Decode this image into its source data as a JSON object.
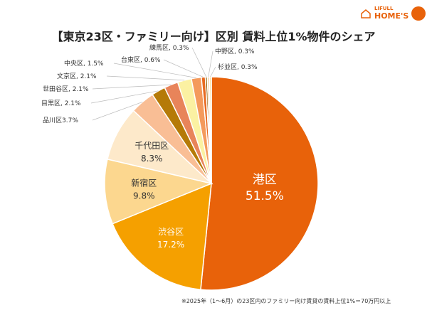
{
  "logo": {
    "line1": "LIFULL",
    "line2": "HOME'S"
  },
  "chart_data": {
    "type": "pie",
    "title": "【東京23区・ファミリー向け】区別 賃料上位1%物件のシェア",
    "footnote": "※2025年（1〜6月）の23区内のファミリー向け賃貸の賃料上位1%＝70万円以上",
    "slices": [
      {
        "label": "港区",
        "value": 51.5,
        "text": "51.5%",
        "color": "#E8620A"
      },
      {
        "label": "渋谷区",
        "value": 17.2,
        "text": "17.2%",
        "color": "#F5A000"
      },
      {
        "label": "新宿区",
        "value": 9.8,
        "text": "9.8%",
        "color": "#FCD78F"
      },
      {
        "label": "千代田区",
        "value": 8.3,
        "text": "8.3%",
        "color": "#FDE9CA"
      },
      {
        "label": "品川区",
        "value": 3.7,
        "text": "品川区3.7%",
        "color": "#F9BE95"
      },
      {
        "label": "目黒区",
        "value": 2.1,
        "text": "目黒区, 2.1%",
        "color": "#B57A08"
      },
      {
        "label": "世田谷区",
        "value": 2.1,
        "text": "世田谷区, 2.1%",
        "color": "#E8845A"
      },
      {
        "label": "文京区",
        "value": 2.1,
        "text": "文京区, 2.1%",
        "color": "#FBF1A2"
      },
      {
        "label": "中央区",
        "value": 1.5,
        "text": "中央区, 1.5%",
        "color": "#F49A5C"
      },
      {
        "label": "台東区",
        "value": 0.6,
        "text": "台東区, 0.6%",
        "color": "#E86A20"
      },
      {
        "label": "練馬区",
        "value": 0.3,
        "text": "練馬区, 0.3%",
        "color": "#8A5A00"
      },
      {
        "label": "中野区",
        "value": 0.3,
        "text": "中野区, 0.3%",
        "color": "#F7C990"
      },
      {
        "label": "杉並区",
        "value": 0.3,
        "text": "杉並区, 0.3%",
        "color": "#FCE2A0"
      }
    ]
  }
}
